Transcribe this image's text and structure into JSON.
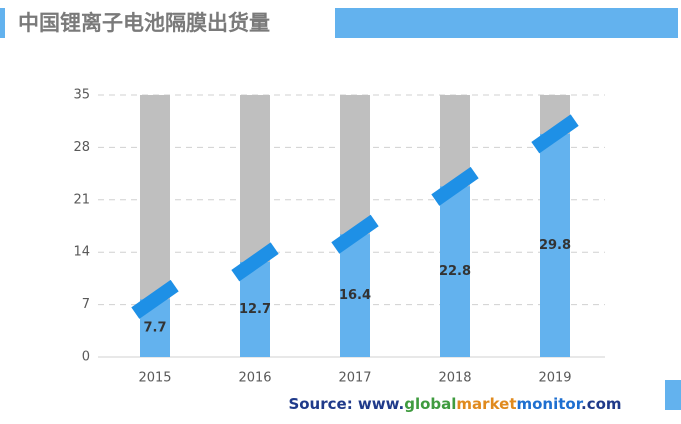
{
  "chart_data": {
    "type": "bar",
    "title": "中国锂离子电池隔膜出货量",
    "categories": [
      "2015",
      "2016",
      "2017",
      "2018",
      "2019"
    ],
    "values": [
      7.7,
      12.7,
      16.4,
      22.8,
      29.8
    ],
    "color": "#63b2ee",
    "marker_color": "#1e90e6",
    "background_color": "#bfbfbf",
    "ylim": [
      0,
      35
    ],
    "yticks": [
      0,
      7,
      14,
      21,
      28,
      35
    ],
    "grid": true,
    "source": [
      "Source: www.",
      "global",
      "market",
      "monitor",
      ".com"
    ],
    "source_colors": [
      "#1f3a8a",
      "#3f9b3f",
      "#e08a1e",
      "#1e6fd0",
      "#1f3a8a"
    ]
  }
}
